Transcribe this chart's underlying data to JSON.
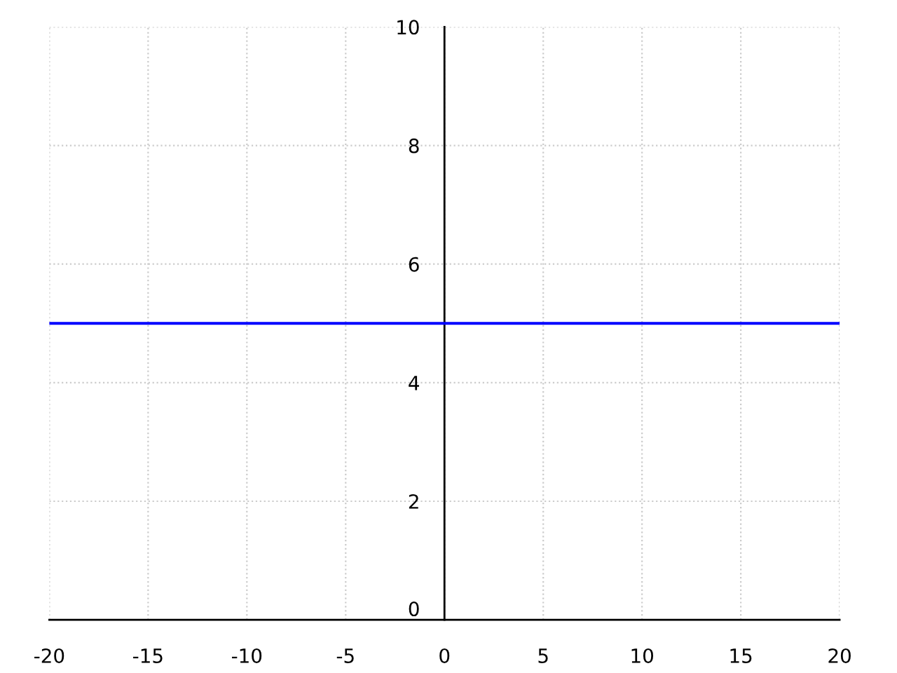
{
  "chart_data": {
    "type": "line",
    "x": [
      -20,
      20
    ],
    "series": [
      {
        "color": "#0000ff",
        "values": [
          5,
          5
        ]
      }
    ],
    "xlim": [
      -20,
      20
    ],
    "xticks": [
      -20,
      -15,
      -10,
      -5,
      0,
      5,
      10,
      15,
      20
    ],
    "ylim": [
      0,
      10
    ],
    "yticks": [
      0,
      2,
      4,
      6,
      8,
      10
    ],
    "grid": true,
    "line_style": "solid",
    "marker": "none"
  }
}
